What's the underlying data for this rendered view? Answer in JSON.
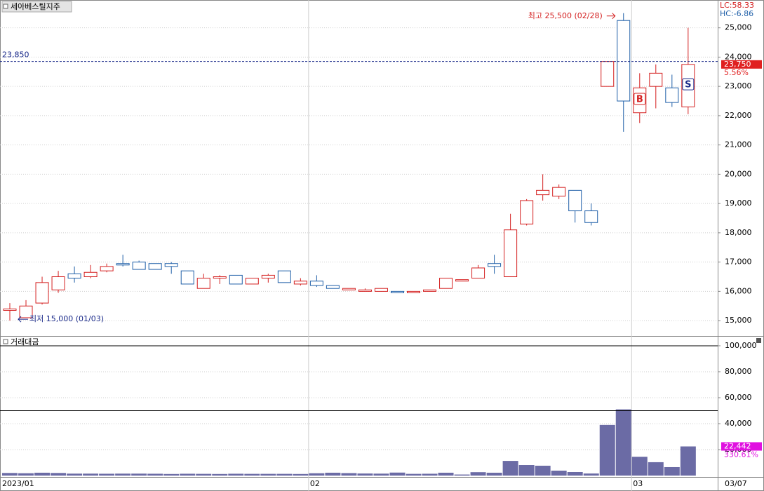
{
  "chart_data": [
    {
      "type": "candlestick",
      "title": "세아베스틸지주",
      "up_color": "#d42020",
      "down_color": "#1f5fa8",
      "open": [
        15350,
        15100,
        15600,
        16050,
        16600,
        16500,
        16700,
        16950,
        17000,
        16950,
        16950,
        16700,
        16100,
        16450,
        16550,
        16250,
        16450,
        16700,
        16250,
        16350,
        16200,
        16050,
        16000,
        16000,
        16000,
        15950,
        16000,
        16100,
        16350,
        16450,
        16950,
        16500,
        18300,
        19300,
        19250,
        19450,
        18750,
        23000,
        25250,
        22100,
        23000,
        22950,
        22300
      ],
      "high": [
        15600,
        15700,
        16500,
        16700,
        16850,
        16900,
        16950,
        17250,
        17050,
        16950,
        17000,
        16700,
        16600,
        16550,
        16550,
        16450,
        16600,
        16700,
        16450,
        16550,
        16200,
        16100,
        16100,
        16100,
        16000,
        16000,
        16050,
        16450,
        16400,
        16900,
        17250,
        18650,
        19150,
        20000,
        19650,
        19450,
        19000,
        23850,
        25500,
        23450,
        23750,
        23400,
        25000
      ],
      "low": [
        15000,
        15100,
        15550,
        15950,
        16300,
        16450,
        16650,
        16850,
        16750,
        16750,
        16600,
        16250,
        16100,
        16250,
        16250,
        16250,
        16300,
        16300,
        16200,
        16150,
        16100,
        16050,
        16000,
        16000,
        15950,
        15950,
        16000,
        16100,
        16350,
        16450,
        16600,
        16500,
        18250,
        19100,
        19150,
        18350,
        18250,
        23000,
        21450,
        21750,
        22250,
        22300,
        22050
      ],
      "close": [
        15400,
        15500,
        16300,
        16500,
        16450,
        16650,
        16850,
        16900,
        16750,
        16750,
        16850,
        16250,
        16450,
        16500,
        16250,
        16450,
        16550,
        16300,
        16350,
        16200,
        16100,
        16100,
        16050,
        16100,
        15950,
        16000,
        16050,
        16450,
        16400,
        16800,
        16850,
        18100,
        19100,
        19450,
        19550,
        18750,
        18350,
        23850,
        22500,
        22950,
        23450,
        22450,
        23750
      ],
      "ylim": [
        14500,
        25950
      ],
      "yticks": [
        {
          "value": 15000,
          "label": "15,000"
        },
        {
          "value": 16000,
          "label": "16,000"
        },
        {
          "value": 17000,
          "label": "17,000"
        },
        {
          "value": 18000,
          "label": "18,000"
        },
        {
          "value": 19000,
          "label": "19,000"
        },
        {
          "value": 20000,
          "label": "20,000"
        },
        {
          "value": 21000,
          "label": "21,000"
        },
        {
          "value": 22000,
          "label": "22,000"
        },
        {
          "value": 23000,
          "label": "23,000"
        },
        {
          "value": 24000,
          "label": "24,000"
        },
        {
          "value": 25000,
          "label": "25,000"
        }
      ],
      "grid": true,
      "reference_line": {
        "value": 23850,
        "label": "23,850",
        "color": "#1a2a8a"
      },
      "last_price": {
        "value": 23750,
        "label": "23,750",
        "change": "5.56%",
        "color": "#e02020"
      },
      "indicators": [
        {
          "text": "LC:58.33",
          "color": "#d42020"
        },
        {
          "text": "HC:-6.86",
          "color": "#1f5fa8"
        }
      ],
      "annotations": [
        {
          "text": "최고 25,500 (02/28)",
          "index": 38,
          "value": 25500,
          "color": "#d42020"
        },
        {
          "text": "최저 15,000 (01/03)",
          "index": 0,
          "value": 15000,
          "color": "#1a2a8a"
        }
      ],
      "markers": [
        {
          "index": 39,
          "label": "B",
          "color": "#d42020"
        },
        {
          "index": 42,
          "label": "S",
          "color": "#1a2a8a"
        }
      ]
    },
    {
      "type": "bar",
      "title": "거래대금",
      "color": "#6b6ba5",
      "categories": [
        "2023/01",
        null,
        null,
        null,
        null,
        null,
        null,
        null,
        null,
        null,
        null,
        null,
        null,
        null,
        null,
        null,
        null,
        null,
        null,
        "02",
        null,
        null,
        null,
        null,
        null,
        null,
        null,
        null,
        null,
        null,
        null,
        null,
        null,
        null,
        null,
        null,
        null,
        null,
        null,
        "03",
        null,
        null,
        "03/07"
      ],
      "values": [
        2000,
        1800,
        2200,
        2000,
        1500,
        1500,
        1400,
        1500,
        1500,
        1400,
        1200,
        1400,
        1300,
        1200,
        1400,
        1300,
        1300,
        1300,
        1200,
        1800,
        2200,
        1900,
        1600,
        1500,
        2300,
        1300,
        1400,
        2200,
        800,
        2600,
        2200,
        11300,
        8100,
        7600,
        3800,
        2700,
        1600,
        39000,
        51000,
        14500,
        10300,
        6500,
        22442
      ],
      "ylim": [
        0,
        107000
      ],
      "yticks": [
        {
          "value": 20000,
          "label": "20,000"
        },
        {
          "value": 40000,
          "label": "40,000"
        },
        {
          "value": 60000,
          "label": "60,000"
        },
        {
          "value": 80000,
          "label": "80,000"
        },
        {
          "value": 100000,
          "label": "100,000"
        }
      ],
      "grid": true,
      "reference_lines": [
        100000,
        50000
      ],
      "last_value": {
        "value": 22442,
        "label": "22,442",
        "change": "330.61%",
        "color": "#e010e0"
      }
    }
  ]
}
